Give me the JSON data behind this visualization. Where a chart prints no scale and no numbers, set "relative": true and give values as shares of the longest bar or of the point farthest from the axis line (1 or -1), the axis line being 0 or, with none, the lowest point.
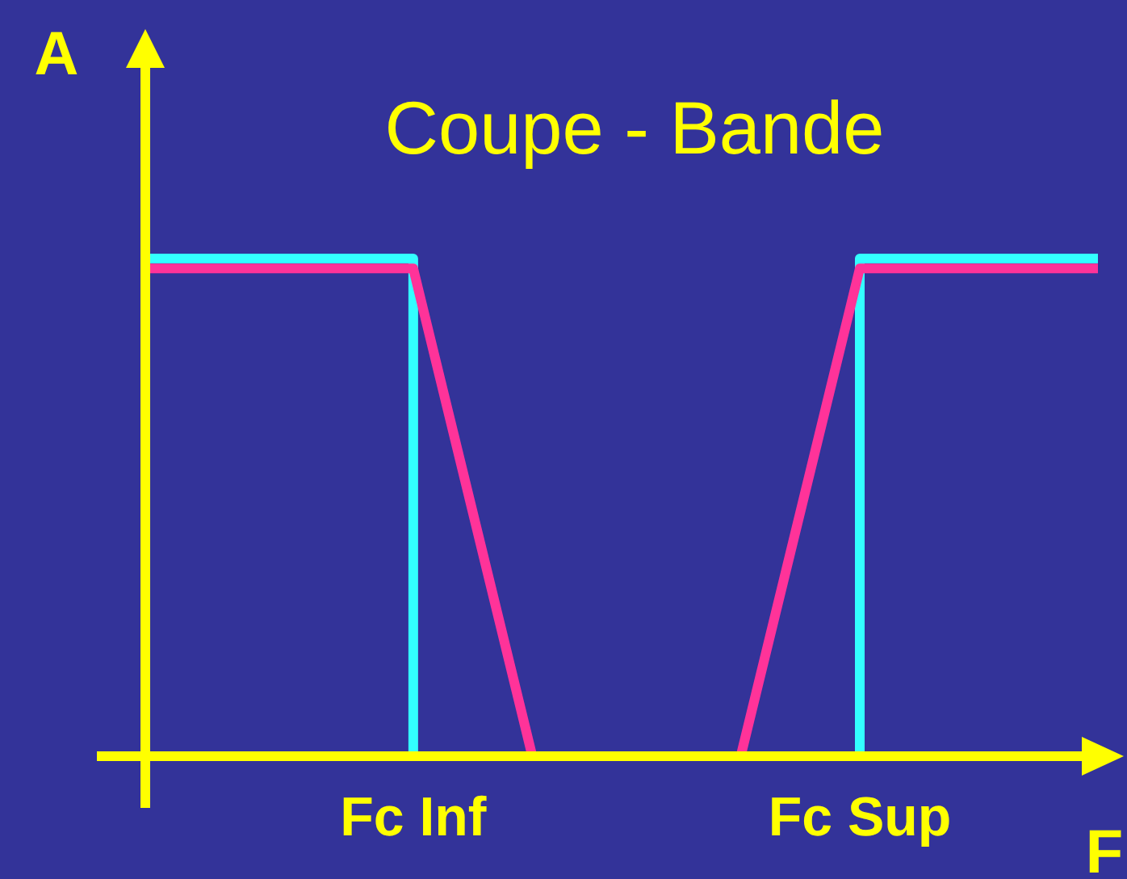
{
  "chart_data": {
    "type": "line",
    "title": "Coupe - Bande",
    "xlabel": "F",
    "ylabel": "A",
    "relative": true,
    "categories": [
      null,
      null,
      null,
      null,
      null,
      null,
      null,
      null,
      null,
      "Fc Inf",
      null,
      null,
      null,
      null,
      null,
      null,
      null,
      null,
      null,
      null,
      null,
      null,
      null,
      null,
      "Fc Sup",
      null,
      null,
      null,
      null,
      null,
      null,
      null,
      null
    ],
    "series": [
      {
        "type": "step",
        "color": "#33ffff",
        "values": [
          1,
          1,
          1,
          1,
          1,
          1,
          1,
          1,
          1,
          0,
          null,
          null,
          null,
          null,
          null,
          null,
          null,
          null,
          null,
          null,
          null,
          null,
          null,
          0,
          1,
          1,
          1,
          1,
          1,
          1,
          1,
          1,
          1
        ]
      },
      {
        "color": "#ff3399",
        "values": [
          0.98,
          0.98,
          0.98,
          0.98,
          0.98,
          0.98,
          0.98,
          0.98,
          0.98,
          0.98,
          null,
          null,
          null,
          0,
          null,
          null,
          null,
          null,
          null,
          null,
          0,
          null,
          null,
          null,
          0.98,
          0.98,
          0.98,
          0.98,
          0.98,
          0.98,
          0.98,
          0.98,
          0.98
        ]
      }
    ]
  }
}
